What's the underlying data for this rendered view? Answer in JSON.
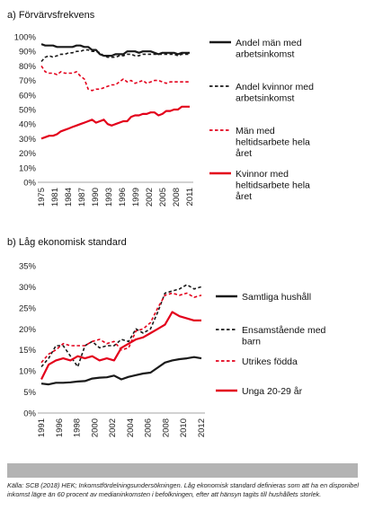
{
  "colors": {
    "black": "#1a1a1a",
    "red": "#e3001b",
    "grid": "#c8c8c8"
  },
  "chart_data": [
    {
      "type": "line",
      "title": "a) Förvärvsfrekvens",
      "ylim": [
        0,
        100
      ],
      "yticks": [
        "0%",
        "10%",
        "20%",
        "30%",
        "40%",
        "50%",
        "60%",
        "70%",
        "80%",
        "90%",
        "100%"
      ],
      "x": [
        1975,
        1976,
        1977,
        1978,
        1979,
        1980,
        1981,
        1982,
        1983,
        1984,
        1985,
        1986,
        1987,
        1988,
        1989,
        1990,
        1991,
        1992,
        1993,
        1994,
        1995,
        1996,
        1997,
        1998,
        1999,
        2000,
        2001,
        2002,
        2003,
        2004,
        2005,
        2006,
        2007,
        2008,
        2009,
        2010,
        2011,
        2012,
        2013
      ],
      "xtick_labels": [
        "1975",
        "1981",
        "1984",
        "1987",
        "1990",
        "1993",
        "1996",
        "1999",
        "2002",
        "2005",
        "2008",
        "2011"
      ],
      "grid": false,
      "legend": "right",
      "series": [
        {
          "name": "Andel män med arbetsinkomst",
          "color": "#1a1a1a",
          "dash": "solid",
          "values": [
            95,
            94,
            94,
            94,
            93,
            93,
            93,
            93,
            93,
            94,
            94,
            93,
            93,
            91,
            91,
            88,
            87,
            87,
            87,
            88,
            88,
            88,
            90,
            90,
            90,
            89,
            90,
            90,
            90,
            89,
            88,
            89,
            89,
            89,
            89,
            88,
            89,
            89,
            89
          ]
        },
        {
          "name": "Andel kvinnor med arbetsinkomst",
          "color": "#1a1a1a",
          "dash": "dashed",
          "values": [
            83,
            86,
            87,
            86,
            87,
            88,
            88,
            89,
            89,
            90,
            90,
            91,
            91,
            90,
            90,
            89,
            87,
            86,
            86,
            86,
            87,
            87,
            88,
            88,
            87,
            87,
            88,
            88,
            88,
            88,
            88,
            88,
            88,
            88,
            88,
            87,
            88,
            88,
            88
          ]
        },
        {
          "name": "Män med heltidsarbete hela året",
          "color": "#e3001b",
          "dash": "dashed",
          "values": [
            80,
            76,
            75,
            75,
            74,
            76,
            75,
            75,
            75,
            76,
            73,
            71,
            64,
            63,
            64,
            64,
            65,
            66,
            67,
            67,
            69,
            71,
            69,
            70,
            68,
            69,
            70,
            68,
            69,
            70,
            70,
            69,
            68,
            69,
            69,
            69,
            69,
            69,
            69
          ]
        },
        {
          "name": "Kvinnor med heltidsarbete hela året",
          "color": "#e3001b",
          "dash": "solid",
          "values": [
            30,
            31,
            32,
            32,
            33,
            35,
            36,
            37,
            38,
            39,
            40,
            41,
            42,
            43,
            41,
            42,
            43,
            40,
            39,
            40,
            41,
            42,
            42,
            45,
            46,
            46,
            47,
            47,
            48,
            48,
            46,
            47,
            49,
            49,
            50,
            50,
            52,
            52,
            52
          ]
        }
      ]
    },
    {
      "type": "line",
      "title": "b) Låg ekonomisk standard",
      "ylim": [
        0,
        35
      ],
      "yticks": [
        "0%",
        "5%",
        "10%",
        "15%",
        "20%",
        "25%",
        "30%",
        "35%"
      ],
      "x": [
        1991,
        1992,
        1993,
        1994,
        1995,
        1996,
        1997,
        1998,
        1999,
        2000,
        2001,
        2002,
        2003,
        2004,
        2005,
        2006,
        2007,
        2008,
        2009,
        2010,
        2011,
        2012,
        2013
      ],
      "xtick_labels": [
        "1991",
        "1996",
        "1998",
        "2000",
        "2002",
        "2004",
        "2006",
        "2008",
        "2010",
        "2012"
      ],
      "grid": false,
      "legend": "right",
      "series": [
        {
          "name": "Samtliga hushåll",
          "color": "#1a1a1a",
          "dash": "solid",
          "values": [
            7.0,
            6.8,
            7.2,
            7.2,
            7.3,
            7.5,
            7.6,
            8.2,
            8.4,
            8.5,
            8.9,
            8.0,
            8.6,
            9.0,
            9.4,
            9.6,
            10.8,
            12.0,
            12.5,
            12.8,
            13.0,
            13.3,
            13.0
          ]
        },
        {
          "name": "Ensamstående med barn",
          "color": "#1a1a1a",
          "dash": "dashed",
          "values": [
            11.0,
            13.0,
            16.0,
            16.0,
            13.5,
            11.0,
            16.0,
            17.0,
            15.5,
            16.0,
            16.0,
            17.5,
            17.0,
            20.0,
            19.0,
            20.0,
            24.0,
            28.5,
            29.0,
            29.5,
            30.5,
            29.5,
            30.0
          ]
        },
        {
          "name": "Utrikes födda",
          "color": "#e3001b",
          "dash": "dashed",
          "values": [
            12.0,
            14.0,
            15.0,
            16.5,
            16.0,
            16.0,
            16.0,
            17.0,
            17.5,
            16.5,
            17.0,
            15.0,
            15.5,
            19.5,
            20.0,
            21.5,
            25.0,
            28.0,
            28.5,
            28.0,
            28.5,
            27.5,
            28.0
          ]
        },
        {
          "name": "Unga 20-29 år",
          "color": "#e3001b",
          "dash": "solid",
          "values": [
            8.0,
            11.5,
            12.5,
            13.0,
            12.5,
            13.5,
            13.0,
            13.5,
            12.5,
            13.0,
            12.5,
            15.5,
            16.5,
            17.5,
            18.0,
            19.0,
            20.0,
            21.0,
            24.0,
            23.0,
            22.5,
            22.0,
            22.0
          ]
        }
      ]
    }
  ],
  "footer": {
    "source": "Källa: SCB (2018) HEK; Inkomstfördelningsundersökningen. Låg ekonomisk standard definieras som att ha en disponibel inkomst lägre än 60 procent av medianinkomsten i befolkningen, efter att hänsyn tagits till hushållets storlek."
  }
}
